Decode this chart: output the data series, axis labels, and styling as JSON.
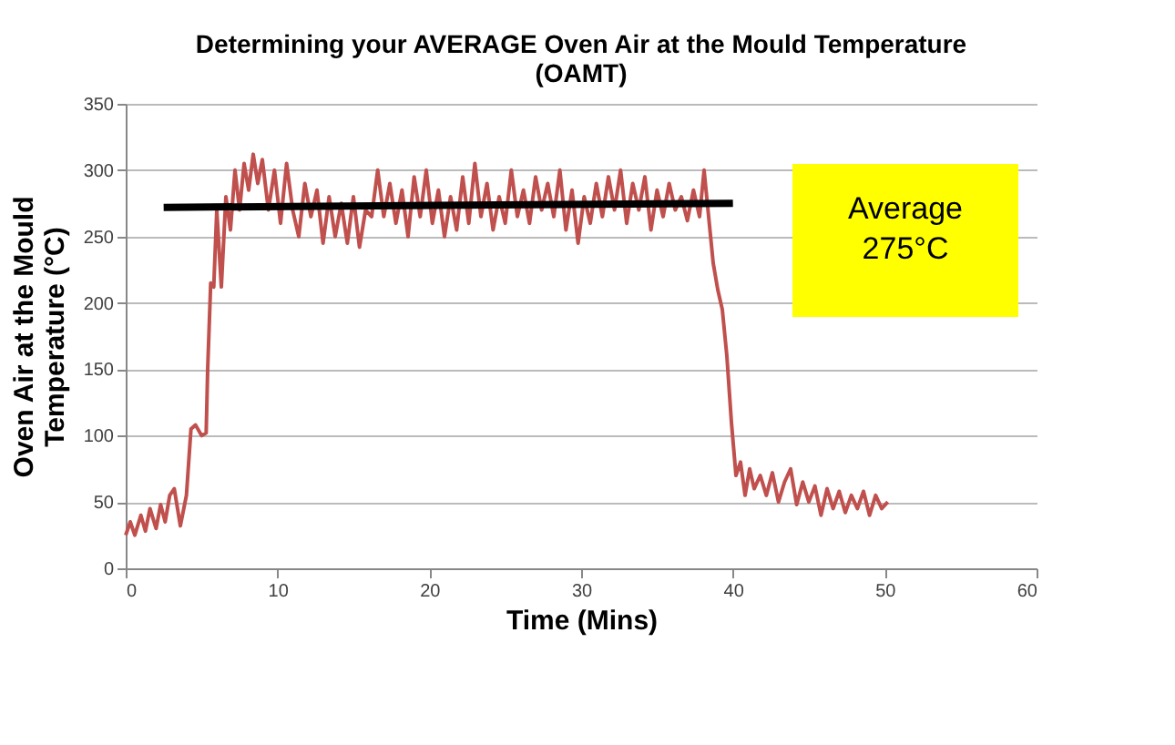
{
  "chart_data": {
    "type": "line",
    "title": "Determining your AVERAGE Oven Air at the Mould Temperature (OAMT)",
    "xlabel": "Time (Mins)",
    "ylabel": "Oven Air at the Mould Temperature (°C)",
    "xlim": [
      0,
      60
    ],
    "xticks": [
      0,
      10,
      20,
      30,
      40,
      50,
      60
    ],
    "ylim": [
      0,
      350
    ],
    "yticks": [
      0,
      50,
      100,
      150,
      200,
      250,
      300,
      350
    ],
    "grid": "y",
    "marker": "none",
    "line_style": "solid",
    "annotations": [
      "Average 275°C"
    ],
    "series": [
      {
        "color": "#c0504d",
        "x": [
          0,
          0.3,
          0.6,
          1,
          1.3,
          1.6,
          2,
          2.3,
          2.6,
          2.9,
          3.2,
          3.6,
          4,
          4.3,
          4.6,
          5,
          5.3,
          5.4,
          5.6,
          5.8,
          6,
          6.3,
          6.6,
          6.9,
          7.2,
          7.5,
          7.8,
          8.1,
          8.4,
          8.7,
          9,
          9.4,
          9.8,
          10.2,
          10.6,
          11,
          11.4,
          11.8,
          12.2,
          12.6,
          13,
          13.4,
          13.8,
          14.2,
          14.6,
          15,
          15.4,
          15.8,
          16.2,
          16.6,
          17,
          17.4,
          17.8,
          18.2,
          18.6,
          19,
          19.4,
          19.8,
          20.2,
          20.6,
          21,
          21.4,
          21.8,
          22.2,
          22.6,
          23,
          23.4,
          23.8,
          24.2,
          24.6,
          25,
          25.4,
          25.8,
          26.2,
          26.6,
          27,
          27.4,
          27.8,
          28.2,
          28.6,
          29,
          29.4,
          29.8,
          30.2,
          30.6,
          31,
          31.4,
          31.8,
          32.2,
          32.6,
          33,
          33.4,
          33.8,
          34.2,
          34.6,
          35,
          35.4,
          35.8,
          36.2,
          36.6,
          37,
          37.4,
          37.8,
          38.1,
          38.4,
          38.7,
          39,
          39.3,
          39.6,
          39.9,
          40.2,
          40.5,
          40.8,
          41.1,
          41.4,
          41.8,
          42.2,
          42.6,
          43,
          43.4,
          43.8,
          44.2,
          44.6,
          45,
          45.4,
          45.8,
          46.2,
          46.6,
          47,
          47.4,
          47.8,
          48.2,
          48.6,
          49,
          49.4,
          49.8,
          50.2
        ],
        "values": [
          25,
          35,
          25,
          40,
          28,
          45,
          30,
          48,
          35,
          55,
          60,
          32,
          55,
          105,
          108,
          100,
          102,
          150,
          215,
          212,
          270,
          212,
          280,
          255,
          300,
          270,
          305,
          285,
          312,
          290,
          308,
          270,
          300,
          260,
          305,
          270,
          250,
          290,
          265,
          285,
          245,
          280,
          250,
          275,
          245,
          280,
          242,
          270,
          265,
          300,
          265,
          290,
          260,
          285,
          250,
          295,
          265,
          300,
          260,
          285,
          250,
          280,
          255,
          295,
          260,
          305,
          265,
          290,
          255,
          280,
          260,
          300,
          265,
          285,
          260,
          295,
          270,
          290,
          265,
          300,
          255,
          285,
          245,
          280,
          260,
          290,
          265,
          295,
          270,
          300,
          260,
          290,
          270,
          295,
          255,
          285,
          265,
          290,
          270,
          280,
          262,
          285,
          265,
          300,
          265,
          230,
          210,
          195,
          160,
          110,
          70,
          80,
          55,
          75,
          60,
          70,
          55,
          72,
          50,
          65,
          75,
          48,
          65,
          50,
          62,
          40,
          60,
          45,
          58,
          42,
          55,
          45,
          58,
          40,
          55,
          45,
          50
        ]
      },
      {
        "type": "line",
        "color": "#000000",
        "x": [
          2.5,
          40
        ],
        "values": [
          272,
          275
        ]
      }
    ]
  }
}
